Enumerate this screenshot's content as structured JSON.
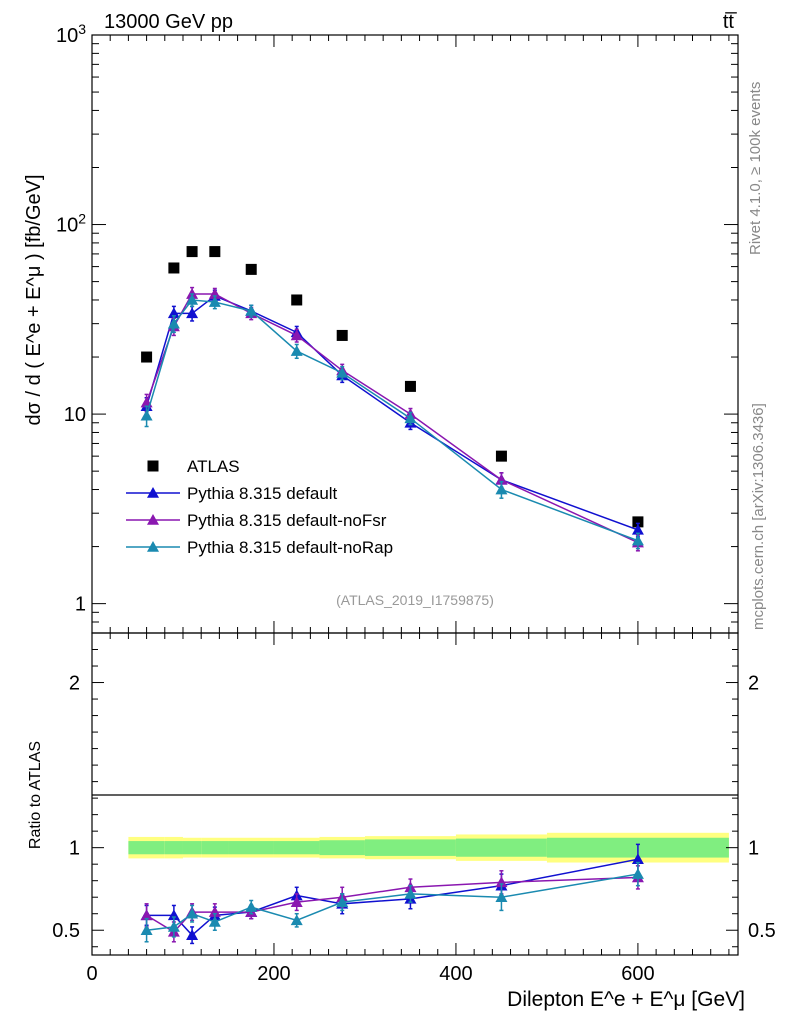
{
  "header": {
    "left": "13000 GeV pp",
    "right": "tt̅"
  },
  "side_labels": {
    "rivet": "Rivet 4.1.0, ≥ 100k events",
    "mcplots": "mcplots.cern.ch [arXiv:1306.3436]"
  },
  "analysis_id": "(ATLAS_2019_I1759875)",
  "colors": {
    "data": "#000000",
    "default": "#1010d0",
    "noFsr": "#8a17b0",
    "noRap": "#1a8ab0",
    "band_outer": "#ffff80",
    "band_inner": "#80ee80"
  },
  "chart_data": [
    {
      "type": "scatter",
      "panel": "main",
      "ylabel": "dσ / d ( E^e + E^μ ) [fb/GeV]",
      "yscale": "log",
      "ylim": [
        0.7,
        1000
      ],
      "xlim": [
        0,
        710
      ],
      "ytick_labels": [
        "1",
        "10",
        "10^2",
        "10^3"
      ],
      "legend": [
        "ATLAS",
        "Pythia 8.315 default",
        "Pythia 8.315 default-noFsr",
        "Pythia 8.315 default-noRap"
      ],
      "x": [
        60,
        90,
        110,
        135,
        175,
        225,
        275,
        350,
        450,
        600
      ],
      "series": [
        {
          "name": "ATLAS",
          "key": "data",
          "marker": "square",
          "values": [
            20,
            59,
            72,
            72,
            58,
            40,
            26,
            14,
            6,
            2.7
          ]
        },
        {
          "name": "Pythia 8.315 default",
          "key": "default",
          "marker": "triangle",
          "values": [
            11,
            34,
            34,
            42,
            35,
            27,
            16,
            9,
            4.5,
            2.45
          ],
          "errors": [
            1.2,
            3,
            3,
            3,
            2.5,
            2,
            1.3,
            0.7,
            0.4,
            0.2
          ]
        },
        {
          "name": "Pythia 8.315 default-noFsr",
          "key": "noFsr",
          "marker": "triangle",
          "values": [
            11.5,
            29,
            43,
            43,
            34,
            26,
            17,
            10,
            4.5,
            2.1
          ],
          "errors": [
            1.2,
            3,
            3.5,
            3,
            2.5,
            2,
            1.3,
            0.7,
            0.4,
            0.2
          ]
        },
        {
          "name": "Pythia 8.315 default-noRap",
          "key": "noRap",
          "marker": "triangle",
          "values": [
            9.8,
            30,
            40,
            39,
            35,
            21.5,
            16.5,
            9.5,
            4,
            2.15
          ],
          "errors": [
            1.2,
            3,
            3,
            3,
            2.5,
            1.8,
            1.3,
            0.7,
            0.4,
            0.2
          ]
        }
      ]
    },
    {
      "type": "line",
      "panel": "ratio",
      "ylabel": "Ratio to ATLAS",
      "xlabel": "Dilepton E^e + E^μ [GeV]",
      "ylim": [
        0.35,
        2.3
      ],
      "xlim": [
        0,
        710
      ],
      "ytick_labels": [
        "0.5",
        "1",
        "2"
      ],
      "xtick_labels": [
        "0",
        "200",
        "400",
        "600"
      ],
      "x": [
        60,
        90,
        110,
        135,
        175,
        225,
        275,
        350,
        450,
        600
      ],
      "bands": {
        "edges": [
          40,
          80,
          100,
          120,
          150,
          200,
          250,
          300,
          400,
          500,
          700
        ],
        "outer": [
          0.065,
          0.065,
          0.06,
          0.06,
          0.06,
          0.06,
          0.065,
          0.07,
          0.08,
          0.09
        ],
        "inner": [
          0.04,
          0.04,
          0.04,
          0.04,
          0.04,
          0.04,
          0.045,
          0.05,
          0.055,
          0.06
        ]
      },
      "series": [
        {
          "name": "Pythia 8.315 default",
          "key": "default",
          "values": [
            0.59,
            0.59,
            0.47,
            0.59,
            0.61,
            0.71,
            0.66,
            0.69,
            0.77,
            0.93
          ],
          "errors": [
            0.06,
            0.06,
            0.05,
            0.05,
            0.04,
            0.05,
            0.06,
            0.06,
            0.07,
            0.09
          ]
        },
        {
          "name": "Pythia 8.315 default-noFsr",
          "key": "noFsr",
          "values": [
            0.59,
            0.49,
            0.61,
            0.61,
            0.61,
            0.67,
            0.7,
            0.76,
            0.79,
            0.82
          ],
          "errors": [
            0.07,
            0.06,
            0.05,
            0.05,
            0.04,
            0.05,
            0.06,
            0.05,
            0.07,
            0.07
          ]
        },
        {
          "name": "Pythia 8.315 default-noRap",
          "key": "noRap",
          "values": [
            0.5,
            0.52,
            0.6,
            0.55,
            0.64,
            0.56,
            0.67,
            0.72,
            0.7,
            0.84
          ],
          "errors": [
            0.07,
            0.06,
            0.05,
            0.05,
            0.04,
            0.04,
            0.05,
            0.05,
            0.08,
            0.07
          ]
        }
      ]
    }
  ]
}
